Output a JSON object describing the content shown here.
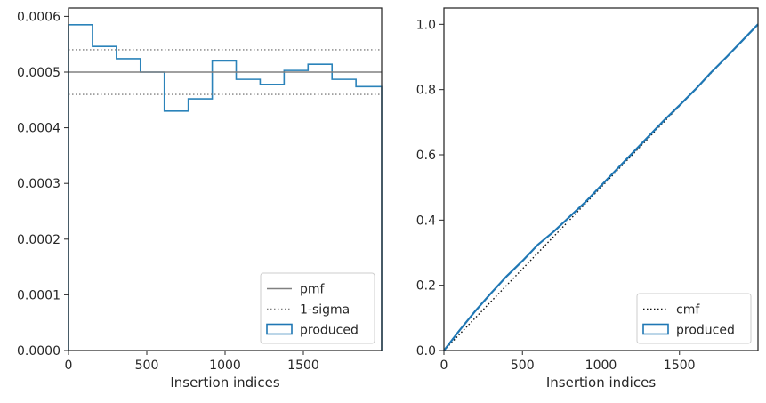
{
  "chart_data": [
    {
      "type": "histogram",
      "xlabel": "Insertion indices",
      "ylabel": "",
      "xlim": [
        0,
        2000
      ],
      "ylim": [
        0,
        0.000615
      ],
      "xticks": [
        0,
        500,
        1000,
        1500
      ],
      "yticks": [
        0,
        0.0001,
        0.0002,
        0.0003,
        0.0004,
        0.0005,
        0.0006
      ],
      "ytick_labels": [
        "0.0000",
        "0.0001",
        "0.0002",
        "0.0003",
        "0.0004",
        "0.0005",
        "0.0006"
      ],
      "xtick_labels": [
        "0",
        "500",
        "1000",
        "1500"
      ],
      "bin_edges": [
        0,
        153,
        306,
        459,
        612,
        765,
        918,
        1071,
        1224,
        1377,
        1530,
        1683,
        1836,
        2000
      ],
      "bin_values": [
        0.000585,
        0.000546,
        0.000524,
        0.0005,
        0.00043,
        0.000452,
        0.00052,
        0.000487,
        0.000478,
        0.000503,
        0.000514,
        0.000487,
        0.000474
      ],
      "hlines": [
        {
          "name": "pmf",
          "y": 0.0005,
          "style": "solid",
          "color": "#808080"
        },
        {
          "name": "1-sigma",
          "y": 0.00054,
          "style": "dotted",
          "color": "#808080"
        },
        {
          "name": "1-sigma",
          "y": 0.00046,
          "style": "dotted",
          "color": "#808080"
        }
      ],
      "legend": {
        "position": "lower right",
        "entries": [
          {
            "label": "pmf",
            "kind": "solid-line",
            "color": "#808080"
          },
          {
            "label": "1-sigma",
            "kind": "dotted-line",
            "color": "#808080"
          },
          {
            "label": "produced",
            "kind": "box",
            "color": "#1f77b4"
          }
        ]
      },
      "series_color": "#2b83ba"
    },
    {
      "type": "line",
      "xlabel": "Insertion indices",
      "ylabel": "",
      "xlim": [
        0,
        2000
      ],
      "ylim": [
        0,
        1.05
      ],
      "xticks": [
        0,
        500,
        1000,
        1500
      ],
      "xtick_labels": [
        "0",
        "500",
        "1000",
        "1500"
      ],
      "yticks": [
        0,
        0.2,
        0.4,
        0.6,
        0.8,
        1.0
      ],
      "ytick_labels": [
        "0.0",
        "0.2",
        "0.4",
        "0.6",
        "0.8",
        "1.0"
      ],
      "series": [
        {
          "name": "cmf",
          "style": "dotted",
          "color": "#111111",
          "x": [
            0,
            2000
          ],
          "y": [
            0,
            1.0
          ]
        },
        {
          "name": "produced",
          "style": "step",
          "color": "#1f77b4",
          "x": [
            0,
            100,
            200,
            300,
            400,
            500,
            600,
            700,
            800,
            900,
            1000,
            1100,
            1200,
            1300,
            1400,
            1500,
            1600,
            1700,
            1800,
            1900,
            2000
          ],
          "y": [
            0,
            0.062,
            0.121,
            0.176,
            0.228,
            0.275,
            0.325,
            0.365,
            0.41,
            0.455,
            0.505,
            0.555,
            0.605,
            0.655,
            0.705,
            0.752,
            0.8,
            0.852,
            0.9,
            0.95,
            1.0
          ]
        }
      ],
      "legend": {
        "position": "lower right",
        "entries": [
          {
            "label": "cmf",
            "kind": "dotted-line",
            "color": "#111111"
          },
          {
            "label": "produced",
            "kind": "box",
            "color": "#1f77b4"
          }
        ]
      }
    }
  ]
}
